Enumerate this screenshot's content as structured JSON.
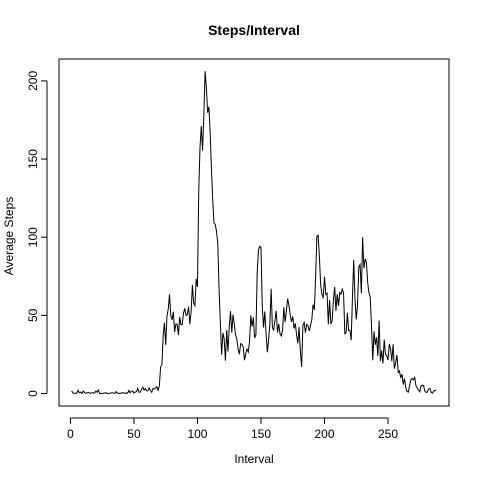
{
  "chart_data": {
    "type": "line",
    "title": "Steps/Interval",
    "xlabel": "Interval",
    "ylabel": "Average Steps",
    "xlim": [
      -9,
      298
    ],
    "ylim": [
      -8,
      214
    ],
    "xticks": [
      0,
      50,
      100,
      150,
      200,
      250
    ],
    "yticks": [
      0,
      50,
      100,
      150,
      200
    ],
    "grid": false,
    "line_color": "#000000",
    "series": [
      {
        "x": [
          1,
          2,
          3,
          4,
          5,
          6,
          7,
          8,
          9,
          10,
          11,
          12,
          13,
          14,
          15,
          16,
          17,
          18,
          19,
          20,
          21,
          22,
          23,
          24,
          25,
          26,
          27,
          28,
          29,
          30,
          31,
          32,
          33,
          34,
          35,
          36,
          37,
          38,
          39,
          40,
          41,
          42,
          43,
          44,
          45,
          46,
          47,
          48,
          49,
          50,
          51,
          52,
          53,
          54,
          55,
          56,
          57,
          58,
          59,
          60,
          61,
          62,
          63,
          64,
          65,
          66,
          67,
          68,
          69,
          70,
          71,
          72,
          73,
          74,
          75,
          76,
          77,
          78,
          79,
          80,
          81,
          82,
          83,
          84,
          85,
          86,
          87,
          88,
          89,
          90,
          91,
          92,
          93,
          94,
          95,
          96,
          97,
          98,
          99,
          100,
          101,
          102,
          103,
          104,
          105,
          106,
          107,
          108,
          109,
          110,
          111,
          112,
          113,
          114,
          115,
          116,
          117,
          118,
          119,
          120,
          121,
          122,
          123,
          124,
          125,
          126,
          127,
          128,
          129,
          130,
          131,
          132,
          133,
          134,
          135,
          136,
          137,
          138,
          139,
          140,
          141,
          142,
          143,
          144,
          145,
          146,
          147,
          148,
          149,
          150,
          151,
          152,
          153,
          154,
          155,
          156,
          157,
          158,
          159,
          160,
          161,
          162,
          163,
          164,
          165,
          166,
          167,
          168,
          169,
          170,
          171,
          172,
          173,
          174,
          175,
          176,
          177,
          178,
          179,
          180,
          181,
          182,
          183,
          184,
          185,
          186,
          187,
          188,
          189,
          190,
          191,
          192,
          193,
          194,
          195,
          196,
          197,
          198,
          199,
          200,
          201,
          202,
          203,
          204,
          205,
          206,
          207,
          208,
          209,
          210,
          211,
          212,
          213,
          214,
          215,
          216,
          217,
          218,
          219,
          220,
          221,
          222,
          223,
          224,
          225,
          226,
          227,
          228,
          229,
          230,
          231,
          232,
          233,
          234,
          235,
          236,
          237,
          238,
          239,
          240,
          241,
          242,
          243,
          244,
          245,
          246,
          247,
          248,
          249,
          250,
          251,
          252,
          253,
          254,
          255,
          256,
          257,
          258,
          259,
          260,
          261,
          262,
          263,
          264,
          265,
          266,
          267,
          268,
          269,
          270,
          271,
          272,
          273,
          274,
          275,
          276,
          277,
          278,
          279,
          280,
          281,
          282,
          283,
          284,
          285,
          286,
          287,
          288
        ],
        "values": [
          1.7,
          0.3,
          0.1,
          0.2,
          0.1,
          2.1,
          0.5,
          0.9,
          0,
          1.5,
          0.8,
          0.1,
          0.3,
          0.7,
          0.4,
          0.1,
          0.5,
          0.5,
          0.2,
          1.5,
          0.8,
          2.2,
          0,
          0,
          0,
          0.2,
          0.3,
          0.5,
          0.1,
          0,
          0.2,
          0.3,
          0.5,
          0.2,
          0.1,
          1.2,
          0.3,
          0,
          0.1,
          0.2,
          0.6,
          0.3,
          0.1,
          0.4,
          0.1,
          2,
          0.5,
          1.4,
          1.5,
          0.3,
          0.9,
          1.2,
          3.2,
          0.7,
          1,
          2.6,
          4,
          2.2,
          3.1,
          1.6,
          1.7,
          3.6,
          1.9,
          0.8,
          3.2,
          2.9,
          3.6,
          4.3,
          2.1,
          4.9,
          17.1,
          18.5,
          37,
          45.3,
          31.1,
          49.6,
          54,
          63.5,
          49.9,
          47.1,
          52.3,
          39.3,
          44.5,
          44.2,
          37.4,
          49,
          44,
          44.2,
          51.3,
          54.5,
          49.9,
          50.4,
          55.5,
          44.3,
          52.2,
          69.5,
          57.8,
          56.2,
          73.4,
          68.2,
          129.4,
          157.5,
          171.2,
          155.4,
          177.3,
          206.2,
          195.9,
          179.6,
          183.4,
          167,
          143.5,
          124,
          109.1,
          108.1,
          103.7,
          95.9,
          66.2,
          45.2,
          24.8,
          38.8,
          34.9,
          21,
          40.6,
          26.9,
          42.4,
          52.7,
          38.9,
          50.5,
          44.3,
          37.4,
          34.7,
          28.3,
          25.1,
          31.9,
          31.4,
          29.7,
          21.3,
          25.5,
          28.4,
          26.5,
          33.4,
          49.9,
          42.8,
          48.7,
          35.5,
          37.6,
          77.2,
          91.6,
          94.2,
          93.4,
          55.6,
          42.2,
          52.4,
          38.4,
          26.4,
          34.1,
          44.9,
          67.1,
          42,
          40.6,
          47,
          52.9,
          39,
          44.5,
          38.1,
          36.8,
          40.6,
          55.2,
          45.7,
          52.9,
          60.7,
          56.3,
          50.4,
          45.8,
          49.3,
          41.6,
          44.9,
          37.7,
          32,
          42.5,
          26.9,
          17,
          43.8,
          45.5,
          38.9,
          44.3,
          43.5,
          40,
          43.6,
          47.2,
          56.9,
          53.5,
          74.4,
          100.5,
          101.2,
          87.2,
          69.3,
          63.4,
          61,
          74.8,
          63.4,
          64.2,
          44.3,
          59.8,
          44.5,
          46.5,
          59.7,
          68.2,
          52.9,
          63.6,
          56,
          64.6,
          63.6,
          66.8,
          64.2,
          38.2,
          38.8,
          51.6,
          40.3,
          40.4,
          34.1,
          61.4,
          85.5,
          60.2,
          47.4,
          57,
          80.9,
          82.5,
          64.1,
          100,
          80.1,
          86,
          83.8,
          70.8,
          64.4,
          61.8,
          43,
          21.3,
          39.7,
          31.2,
          35.9,
          23.9,
          46.6,
          20.8,
          27.4,
          19.2,
          34.5,
          25,
          24.3,
          21.4,
          31.7,
          28.7,
          20.6,
          31.5,
          15.9,
          19.7,
          24.7,
          13.5,
          14.4,
          9.9,
          12.4,
          5.7,
          9.6,
          3.7,
          1.3,
          0.9,
          5.1,
          8.9,
          9.7,
          8.7,
          10.3,
          4.9,
          3.5,
          2.2,
          1.1,
          4.9,
          5.3,
          5.1,
          1.5,
          0.6,
          1.2,
          2.8,
          3.3,
          0.7,
          0.2,
          1.6,
          1.9,
          2.2
        ]
      }
    ]
  }
}
